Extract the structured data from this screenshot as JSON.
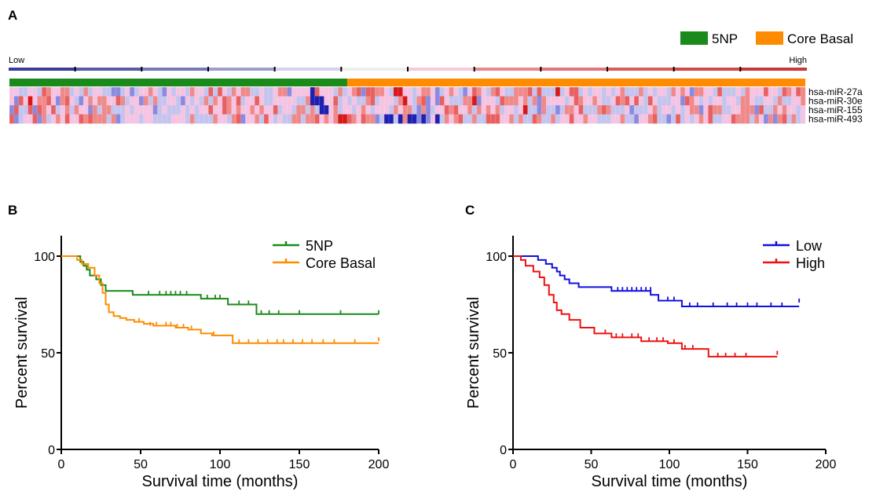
{
  "panels": {
    "a": "A",
    "b": "B",
    "c": "C"
  },
  "colors": {
    "green": "#1a8a1a",
    "orange": "#ff8c00",
    "blue": "#1010dd",
    "red": "#ee1111"
  },
  "chart_data": [
    {
      "type": "heatmap",
      "legend": [
        "5NP",
        "Core Basal"
      ],
      "scale_low": "Low",
      "scale_high": "High",
      "rows": [
        "hsa-miR-27a",
        "hsa-miR-30e",
        "hsa-miR-155",
        "hsa-miR-493"
      ],
      "groups": [
        {
          "name": "5NP",
          "count": 73
        },
        {
          "name": "Core Basal",
          "count": 99
        }
      ],
      "scale_colors": [
        "#3b3b9e",
        "#5a5aaa",
        "#7878bd",
        "#9d9dcf",
        "#d2d2ea",
        "#eeeeee",
        "#f6c8de",
        "#e88a8a",
        "#e27575",
        "#d95c5c",
        "#d04a4a",
        "#c73838"
      ],
      "cell_palette": [
        "#2020b0",
        "#8a8ae0",
        "#c4c4ee",
        "#f4c4e2",
        "#f08a8a",
        "#e86060",
        "#d81818"
      ],
      "values": [
        "0000000000000000000000000000000000000000000000000000000000000000000000000000000000000000000000000000000000000000000000000000000000000000000000000000000000000000000000000000",
        "0000000000000000000000000000000000000000000000000000000000000000000000000000000000000000000000000000000000000000000000000000000000000000000000000000000000000000000000000000",
        "0000000000000000000000000000000000000000000000000000000000000000000000000000000000000000000000000000000000000000000000000000000000000000000000000000000000000000000000000000",
        "0000000000000000000000000000000000000000000000000000000000000000000000000000000000000000000000000000000000000000000000000000000000000000000000000000000000000000000000000000"
      ],
      "strong_cells": {
        "low": [
          [
            0,
            65
          ],
          [
            1,
            65
          ],
          [
            2,
            68
          ],
          [
            1,
            66
          ],
          [
            3,
            81
          ],
          [
            3,
            82
          ],
          [
            3,
            84
          ],
          [
            3,
            86
          ],
          [
            3,
            87
          ],
          [
            3,
            89
          ],
          [
            3,
            92
          ],
          [
            2,
            67
          ],
          [
            1,
            67
          ]
        ],
        "high": [
          [
            0,
            83
          ],
          [
            0,
            84
          ],
          [
            1,
            4
          ],
          [
            3,
            71
          ],
          [
            3,
            72
          ],
          [
            0,
            118
          ],
          [
            1,
            85
          ],
          [
            1,
            100
          ],
          [
            2,
            111
          ]
        ]
      }
    },
    {
      "type": "line",
      "step": true,
      "xlabel": "Survival time (months)",
      "ylabel": "Percent survival",
      "xlim": [
        0,
        200
      ],
      "ylim": [
        0,
        100
      ],
      "xticks": [
        0,
        50,
        100,
        150,
        200
      ],
      "yticks": [
        0,
        50,
        100
      ],
      "legend_position": "top-right",
      "series": [
        {
          "name": "5NP",
          "color": "#1a8a1a",
          "x": [
            0,
            10,
            12,
            14,
            16,
            18,
            22,
            25,
            28,
            32,
            45,
            88,
            105,
            123,
            200
          ],
          "y": [
            100,
            100,
            97,
            95,
            93,
            90,
            88,
            85,
            82,
            82,
            80,
            78,
            75,
            70,
            70
          ],
          "censored": [
            [
              55,
              80
            ],
            [
              62,
              80
            ],
            [
              66,
              80
            ],
            [
              69,
              80
            ],
            [
              72,
              80
            ],
            [
              75,
              80
            ],
            [
              79,
              80
            ],
            [
              92,
              78
            ],
            [
              97,
              78
            ],
            [
              100,
              78
            ],
            [
              112,
              75
            ],
            [
              118,
              75
            ],
            [
              126,
              70
            ],
            [
              131,
              70
            ],
            [
              137,
              70
            ],
            [
              150,
              70
            ],
            [
              176,
              70
            ],
            [
              200,
              70
            ]
          ]
        },
        {
          "name": "Core Basal",
          "color": "#ff8c00",
          "x": [
            0,
            5,
            10,
            13,
            17,
            21,
            24,
            26,
            28,
            30,
            33,
            37,
            41,
            46,
            52,
            58,
            64,
            72,
            80,
            88,
            95,
            108,
            200
          ],
          "y": [
            100,
            100,
            98,
            96,
            94,
            90,
            86,
            81,
            75,
            71,
            69,
            68,
            67,
            66,
            65,
            64,
            64,
            63,
            62,
            60,
            59,
            55,
            55
          ],
          "censored": [
            [
              49,
              66
            ],
            [
              56,
              64
            ],
            [
              60,
              64
            ],
            [
              66,
              64
            ],
            [
              69,
              64
            ],
            [
              73,
              63
            ],
            [
              77,
              63
            ],
            [
              82,
              62
            ],
            [
              96,
              59
            ],
            [
              112,
              55
            ],
            [
              118,
              55
            ],
            [
              124,
              55
            ],
            [
              130,
              55
            ],
            [
              136,
              55
            ],
            [
              140,
              55
            ],
            [
              146,
              55
            ],
            [
              152,
              55
            ],
            [
              158,
              55
            ],
            [
              165,
              55
            ],
            [
              172,
              55
            ],
            [
              185,
              55
            ],
            [
              200,
              56
            ]
          ]
        }
      ]
    },
    {
      "type": "line",
      "step": true,
      "xlabel": "Survival time (months)",
      "ylabel": "Percent survival",
      "xlim": [
        0,
        200
      ],
      "ylim": [
        0,
        100
      ],
      "xticks": [
        0,
        50,
        100,
        150,
        200
      ],
      "yticks": [
        0,
        50,
        100
      ],
      "legend_position": "top-right",
      "series": [
        {
          "name": "Low",
          "color": "#1010dd",
          "x": [
            0,
            12,
            16,
            21,
            25,
            28,
            30,
            33,
            36,
            42,
            63,
            88,
            93,
            108,
            183
          ],
          "y": [
            100,
            100,
            98,
            96,
            94,
            92,
            90,
            88,
            86,
            84,
            82,
            80,
            77,
            74,
            74
          ],
          "censored": [
            [
              67,
              82
            ],
            [
              70,
              82
            ],
            [
              73,
              82
            ],
            [
              76,
              82
            ],
            [
              79,
              82
            ],
            [
              82,
              82
            ],
            [
              85,
              82
            ],
            [
              88,
              82
            ],
            [
              99,
              77
            ],
            [
              103,
              77
            ],
            [
              113,
              74
            ],
            [
              118,
              74
            ],
            [
              128,
              74
            ],
            [
              137,
              74
            ],
            [
              143,
              74
            ],
            [
              150,
              74
            ],
            [
              156,
              74
            ],
            [
              165,
              74
            ],
            [
              172,
              74
            ],
            [
              183,
              76
            ]
          ]
        },
        {
          "name": "High",
          "color": "#ee1111",
          "x": [
            0,
            5,
            8,
            13,
            17,
            20,
            23,
            26,
            28,
            31,
            36,
            43,
            52,
            63,
            82,
            99,
            108,
            125,
            169
          ],
          "y": [
            100,
            98,
            95,
            92,
            89,
            85,
            80,
            76,
            72,
            70,
            67,
            63,
            60,
            58,
            56,
            55,
            52,
            48,
            48
          ],
          "censored": [
            [
              59,
              60
            ],
            [
              66,
              58
            ],
            [
              70,
              58
            ],
            [
              76,
              58
            ],
            [
              80,
              58
            ],
            [
              87,
              56
            ],
            [
              92,
              56
            ],
            [
              96,
              56
            ],
            [
              103,
              55
            ],
            [
              110,
              52
            ],
            [
              115,
              52
            ],
            [
              131,
              48
            ],
            [
              136,
              48
            ],
            [
              142,
              48
            ],
            [
              149,
              48
            ],
            [
              169,
              49
            ]
          ]
        }
      ]
    }
  ]
}
